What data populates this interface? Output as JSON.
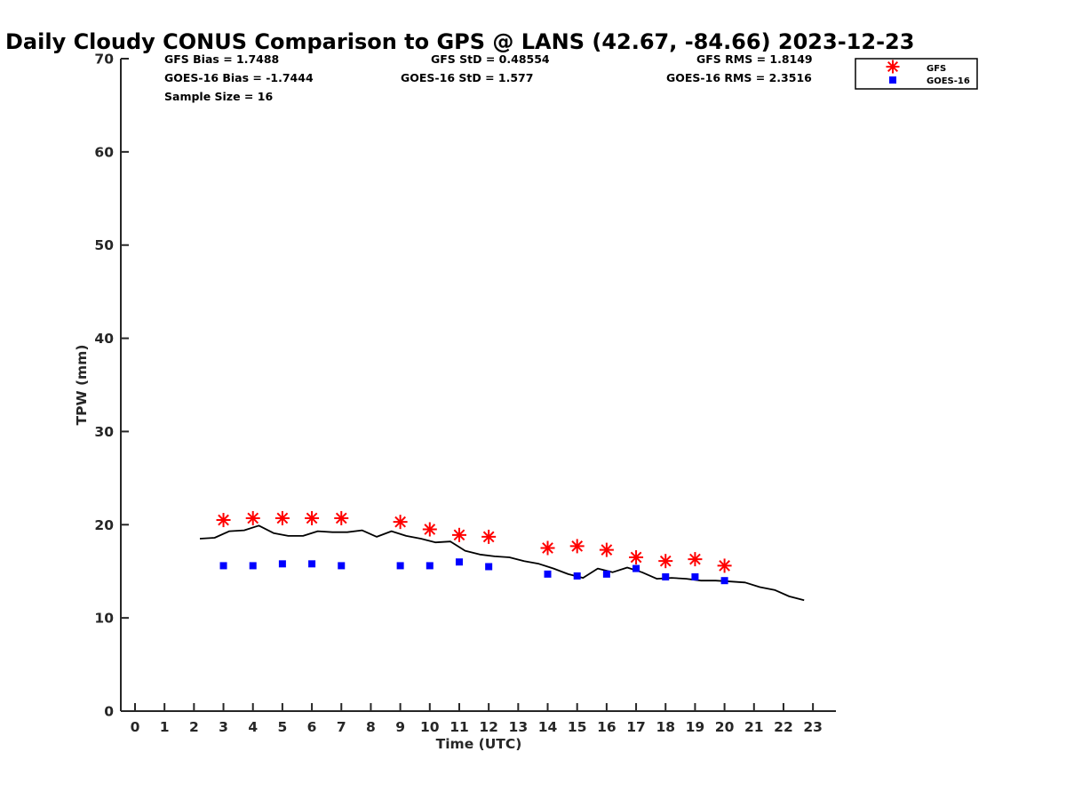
{
  "chart_data": {
    "type": "scatter",
    "title": "Daily Cloudy CONUS Comparison to GPS @ LANS (42.67, -84.66) 2023-12-23",
    "xlabel": "Time (UTC)",
    "ylabel": "TPW (mm)",
    "xlim": [
      -0.5,
      23.7
    ],
    "ylim": [
      0,
      70
    ],
    "xticks": [
      0,
      1,
      2,
      3,
      4,
      5,
      6,
      7,
      8,
      9,
      10,
      11,
      12,
      13,
      14,
      15,
      16,
      17,
      18,
      19,
      20,
      21,
      22,
      23
    ],
    "yticks": [
      0,
      10,
      20,
      30,
      40,
      50,
      60,
      70
    ],
    "grid": false,
    "legend_position": "top-right",
    "stats": {
      "gfs_bias": "GFS Bias = 1.7488",
      "gfs_std": "GFS StD = 0.48554",
      "gfs_rms": "GFS RMS = 1.8149",
      "goes_bias": "GOES-16 Bias = -1.7444",
      "goes_std": "GOES-16 StD = 1.577",
      "goes_rms": "GOES-16 RMS = 2.3516",
      "sample_size": "Sample Size = 16"
    },
    "series": [
      {
        "name": "GFS",
        "marker": "asterisk",
        "color": "#ff0000",
        "x": [
          3,
          4,
          5,
          6,
          7,
          9,
          10,
          11,
          12,
          14,
          15,
          16,
          17,
          18,
          19,
          20
        ],
        "y": [
          20.5,
          20.7,
          20.7,
          20.7,
          20.7,
          20.3,
          19.5,
          18.9,
          18.7,
          17.5,
          17.7,
          17.3,
          16.5,
          16.1,
          16.3,
          15.6
        ]
      },
      {
        "name": "GOES-16",
        "marker": "square",
        "color": "#0000ff",
        "x": [
          3,
          4,
          5,
          6,
          7,
          9,
          10,
          11,
          12,
          14,
          15,
          16,
          17,
          18,
          19,
          20
        ],
        "y": [
          15.6,
          15.6,
          15.8,
          15.8,
          15.6,
          15.6,
          15.6,
          16.0,
          15.5,
          14.7,
          14.5,
          14.7,
          15.3,
          14.4,
          14.4,
          14.0
        ]
      },
      {
        "marker": "line",
        "color": "#000000",
        "x": [
          2.2,
          2.7,
          3.2,
          3.7,
          4.2,
          4.7,
          5.2,
          5.7,
          6.2,
          6.7,
          7.2,
          7.7,
          8.2,
          8.7,
          9.2,
          9.7,
          10.2,
          10.7,
          11.2,
          11.7,
          12.2,
          12.7,
          13.2,
          13.7,
          14.2,
          14.7,
          15.2,
          15.7,
          16.2,
          16.7,
          17.2,
          17.7,
          18.2,
          18.7,
          19.2,
          19.7,
          20.2,
          20.7,
          21.2,
          21.7,
          22.2,
          22.7
        ],
        "y": [
          18.5,
          18.6,
          19.3,
          19.4,
          19.9,
          19.1,
          18.8,
          18.8,
          19.3,
          19.2,
          19.2,
          19.4,
          18.7,
          19.3,
          18.8,
          18.5,
          18.1,
          18.2,
          17.2,
          16.8,
          16.6,
          16.5,
          16.1,
          15.8,
          15.3,
          14.7,
          14.3,
          15.3,
          14.9,
          15.4,
          14.9,
          14.2,
          14.3,
          14.2,
          14.0,
          14.0,
          13.9,
          13.8,
          13.3,
          13.0,
          12.3,
          11.9
        ]
      }
    ]
  }
}
